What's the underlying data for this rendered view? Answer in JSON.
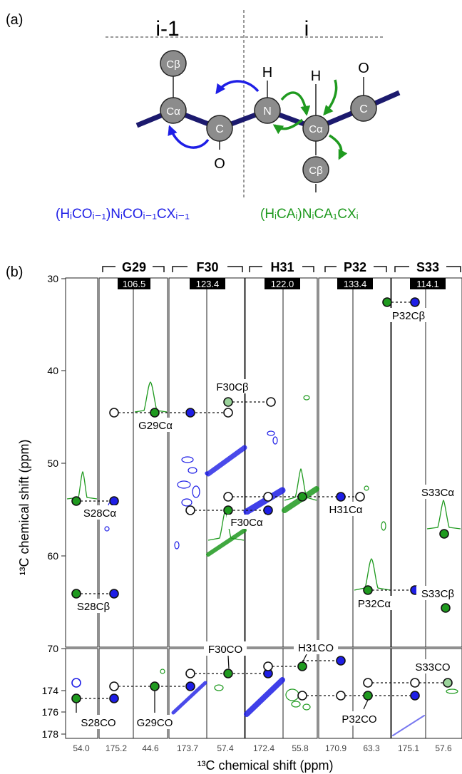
{
  "panel_a": {
    "label": "(a)",
    "left_header": "i-1",
    "right_header": "i",
    "atoms": {
      "cb_prev": "Cβ",
      "ca_prev": "Cα",
      "c_prev": "C",
      "o_prev": "O",
      "n": "N",
      "h_n": "H",
      "ca": "Cα",
      "h_ca": "H",
      "c": "C",
      "o": "O",
      "cb": "Cβ"
    },
    "caption_blue": "(HᵢCOᵢ₋₁)NᵢCOᵢ₋₁CXᵢ₋₁",
    "caption_green": "(HᵢCAᵢ)NᵢCA₁CXᵢ",
    "colors": {
      "blue": "#1e1ee6",
      "green": "#1f9a1f",
      "backbone": "#1c1a6e",
      "atom": "#8c8c8c"
    }
  },
  "panel_b": {
    "label": "(b)",
    "residues": [
      {
        "name": "G29",
        "n_shift": "106.5"
      },
      {
        "name": "F30",
        "n_shift": "123.4"
      },
      {
        "name": "H31",
        "n_shift": "122.0"
      },
      {
        "name": "P32",
        "n_shift": "133.4"
      },
      {
        "name": "S33",
        "n_shift": "114.1"
      }
    ],
    "y_ticks_top": [
      "30",
      "40",
      "50",
      "60",
      "70"
    ],
    "y_ticks_bottom": [
      "174",
      "176",
      "178"
    ],
    "y_label": "¹³C chemical shift (ppm)",
    "x_label": "¹³C chemical shift (ppm)",
    "x_ticks": [
      "54.0",
      "175.2",
      "44.6",
      "173.7",
      "57.4",
      "172.4",
      "55.8",
      "170.9",
      "63.3",
      "175.1",
      "57.6"
    ],
    "peak_labels": {
      "s28ca": "S28Cα",
      "s28cb": "S28Cβ",
      "s28co": "S28CO",
      "g29ca": "G29Cα",
      "g29co": "G29CO",
      "f30cb": "F30Cβ",
      "f30ca": "F30Cα",
      "f30co": "F30CO",
      "h31ca": "H31Cα",
      "h31co": "H31CO",
      "p32cb": "P32Cβ",
      "p32ca": "P32Cα",
      "p32co": "P32CO",
      "s33ca": "S33Cα",
      "s33cb": "S33Cβ",
      "s33co": "S33CO"
    },
    "colors": {
      "blue": "#1e1ee6",
      "green": "#1f9a1f",
      "badge_bg": "#000000",
      "badge_fg": "#ffffff"
    }
  }
}
